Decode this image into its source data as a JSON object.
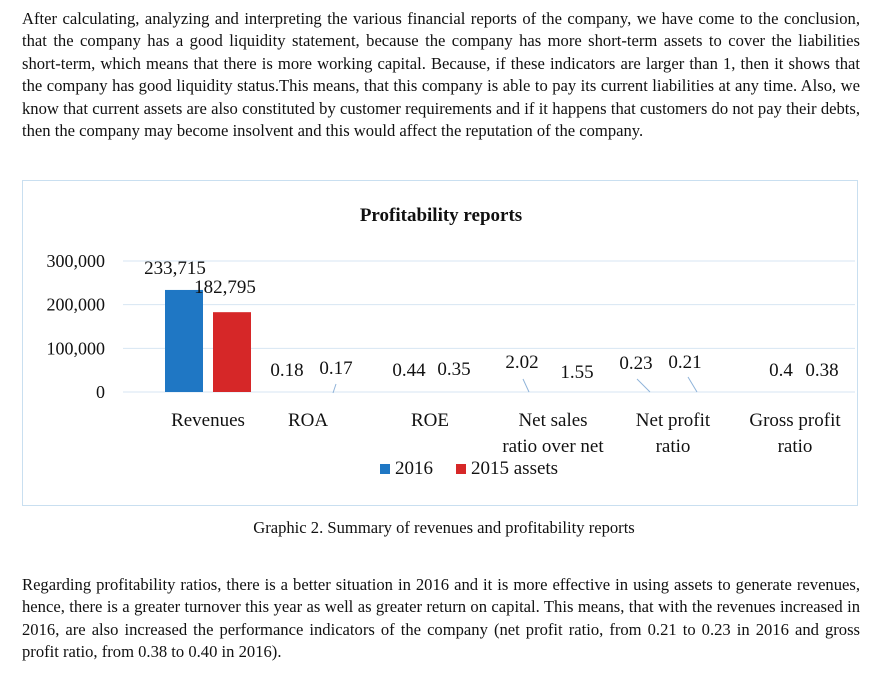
{
  "paragraphs": {
    "intro": "After calculating, analyzing and interpreting the various financial reports of the company, we have come to the conclusion, that the company has a good liquidity statement, because the company has more short-term assets to cover the liabilities short-term, which means that there is more working capital. Because, if these indicators are larger than 1, then it shows that the company has good liquidity status.This means, that this company is able to pay its current liabilities at any time. Also, we know that current assets are also constituted by customer requirements and if it happens that customers do not pay their debts, then the company may become insolvent and this would affect the reputation of the company.",
    "conclusion": "Regarding profitability ratios, there is a better situation in 2016 and it is more effective in using assets to generate revenues, hence, there is a greater turnover this year as well as greater return on capital. This means, that with the revenues increased in 2016, are also increased the performance indicators of the company (net profit ratio, from 0.21 to 0.23 in 2016 and gross profit ratio, from 0.38 to 0.40 in 2016)."
  },
  "caption": "Graphic 2. Summary of revenues and profitability reports",
  "chart_data": {
    "type": "bar",
    "title": "Profitability reports",
    "categories": [
      [
        "Revenues"
      ],
      [
        "ROA"
      ],
      [
        "ROE"
      ],
      [
        "Net sales",
        "ratio over net"
      ],
      [
        "Net profit",
        "ratio"
      ],
      [
        "Gross profit",
        "ratio"
      ]
    ],
    "series": [
      {
        "name": "2016",
        "color": "#1f77c4",
        "values": [
          233715,
          0.18,
          0.44,
          2.02,
          0.23,
          0.4
        ],
        "labels": [
          "233,715",
          "0.18",
          "0.44",
          "2.02",
          "0.23",
          "0.4"
        ]
      },
      {
        "name": "2015",
        "color": "#d62728",
        "values": [
          182795,
          0.17,
          0.35,
          1.55,
          0.21,
          0.38
        ],
        "labels": [
          "182,795",
          "0.17",
          "0.35",
          "1.55",
          "0.21",
          "0.38"
        ]
      }
    ],
    "legend_suffix": "assets",
    "yticks": [
      "300,000",
      "200,000",
      "100,000",
      "0"
    ],
    "ytick_values": [
      300000,
      200000,
      100000,
      0
    ],
    "ylim": [
      0,
      300000
    ],
    "grid": true,
    "legend": "bottom"
  }
}
